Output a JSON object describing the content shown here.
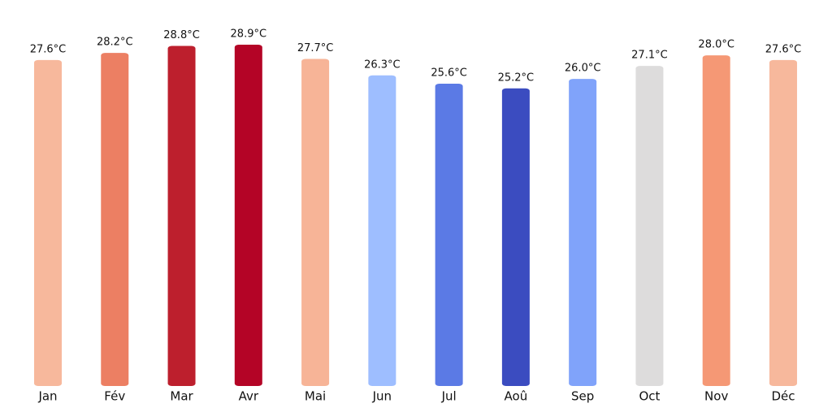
{
  "chart_data": {
    "type": "bar",
    "categories": [
      "Jan",
      "Fév",
      "Mar",
      "Avr",
      "Mai",
      "Jun",
      "Jul",
      "Aoû",
      "Sep",
      "Oct",
      "Nov",
      "Déc"
    ],
    "values": [
      27.6,
      28.2,
      28.8,
      28.9,
      27.7,
      26.3,
      25.6,
      25.2,
      26.0,
      27.1,
      28.0,
      27.6
    ],
    "value_labels": [
      "27.6°C",
      "28.2°C",
      "28.8°C",
      "28.9°C",
      "27.7°C",
      "26.3°C",
      "25.6°C",
      "25.2°C",
      "26.0°C",
      "27.1°C",
      "28.0°C",
      "27.6°C"
    ],
    "colors": [
      "#f7b89c",
      "#ec7f63",
      "#bd1f2d",
      "#b40426",
      "#f7b497",
      "#9ebeff",
      "#5b7ae5",
      "#3b4cc0",
      "#80a3fa",
      "#dddcdc",
      "#f59875",
      "#f7b89c"
    ]
  }
}
